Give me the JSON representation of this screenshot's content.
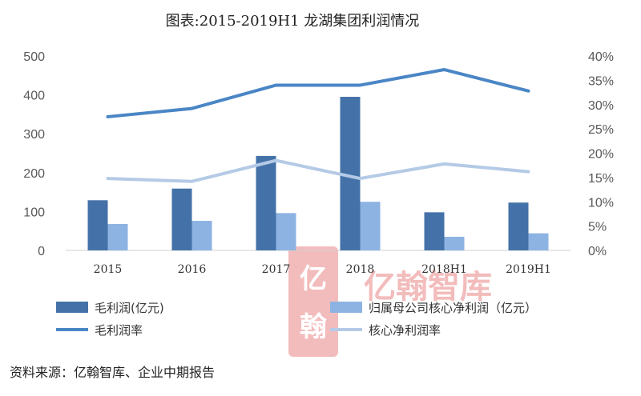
{
  "title": "图表:2015-2019H1 龙湖集团利润情况",
  "source": "资料来源：亿翰智库、企业中期报告",
  "watermark": {
    "text": "亿翰智库",
    "logo_chars": [
      "亿",
      "翰"
    ]
  },
  "colors": {
    "gross_profit_bar": "#4472a8",
    "core_net_profit_bar": "#8db3e2",
    "gross_margin_line": "#4a86c5",
    "core_net_margin_line": "#b4cae6",
    "axis_text": "#595959"
  },
  "chart_data": {
    "type": "bar",
    "categories": [
      "2015",
      "2016",
      "2017",
      "2018",
      "2018H1",
      "2019H1"
    ],
    "y_left": {
      "ylim": [
        0,
        500
      ],
      "ticks": [
        "0",
        "100",
        "200",
        "300",
        "400",
        "500"
      ]
    },
    "y_right": {
      "ylim": [
        0,
        40
      ],
      "ticks": [
        "0%",
        "5%",
        "10%",
        "15%",
        "20%",
        "25%",
        "30%",
        "35%",
        "40%"
      ]
    },
    "series": [
      {
        "name": "毛利润(亿元)",
        "type": "bar",
        "axis": "left",
        "values": [
          129,
          159,
          243,
          395,
          98,
          123
        ]
      },
      {
        "name": "归属母公司核心净利润（亿元）",
        "type": "bar",
        "axis": "left",
        "values": [
          68,
          76,
          96,
          125,
          35,
          44
        ]
      },
      {
        "name": "毛利润率",
        "type": "line",
        "axis": "right",
        "values": [
          27.5,
          29.2,
          34.0,
          34.0,
          37.2,
          32.8
        ]
      },
      {
        "name": "核心净利润率",
        "type": "line",
        "axis": "right",
        "values": [
          14.8,
          14.2,
          18.5,
          14.8,
          17.8,
          16.2
        ]
      }
    ],
    "legend_position": "bottom",
    "grid": false
  }
}
